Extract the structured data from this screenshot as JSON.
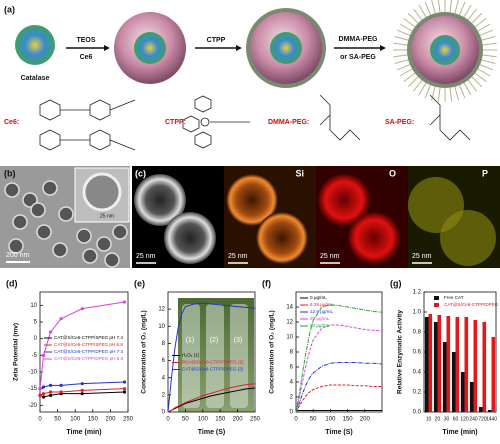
{
  "panels": {
    "a": {
      "label": "(a)",
      "catalase": "Catalase",
      "step1_top": "TEOS",
      "step1_bottom": "Ce6",
      "step2": "CTPP",
      "step3_top": "DMMA-PEG",
      "step3_bottom": "or SA-PEG",
      "structures": [
        "Ce6:",
        "CTPP:",
        "DMMA-PEG:",
        "SA-PEG:"
      ]
    },
    "b": {
      "label": "(b)",
      "inset_scale": "25 nm",
      "scale": "200 nm"
    },
    "c": {
      "label": "(c)",
      "maps": [
        {
          "name": "",
          "scale": "25 nm"
        },
        {
          "name": "Si",
          "scale": "25 nm"
        },
        {
          "name": "O",
          "scale": "25 nm"
        },
        {
          "name": "P",
          "scale": "25 nm"
        }
      ]
    }
  },
  "chart_data": [
    {
      "type": "line",
      "panel": "(d)",
      "x_label": "Time (min)",
      "y_label": "Zeta Potential (mv)",
      "x": [
        0,
        10,
        30,
        60,
        120,
        240
      ],
      "xlim": [
        0,
        250
      ],
      "xticks": [
        0,
        50,
        100,
        150,
        200,
        250
      ],
      "ylim": [
        -22,
        14
      ],
      "yticks": [
        -20,
        -15,
        -10,
        -5,
        0,
        5,
        10
      ],
      "markers": true,
      "legend": "center left",
      "series": [
        {
          "name": "CAT@S/Ce6-CTPP/SPEG pH 7.4",
          "color": "#000000",
          "values": [
            -17,
            -17.5,
            -17,
            -16.5,
            -16.5,
            -16
          ]
        },
        {
          "name": "CAT@S/Ce6-CTPP/SPEG pH 6.8",
          "color": "#e0202a",
          "values": [
            -17,
            -16.5,
            -16,
            -16,
            -15.5,
            -15
          ]
        },
        {
          "name": "CAT@S/Ce6-CTPP/DPEG pH 7.4",
          "color": "#2433c8",
          "values": [
            -15,
            -14.5,
            -14,
            -14,
            -13.5,
            -13
          ]
        },
        {
          "name": "CAT@S/Ce6-CTPP/DPEG pH 6.8",
          "color": "#e040e0",
          "values": [
            -15,
            -5,
            2,
            6,
            9,
            11
          ]
        }
      ]
    },
    {
      "type": "line",
      "panel": "(e)",
      "x_label": "Time (S)",
      "y_label": "Concentration of O₂ (mg/L)",
      "x": [
        0,
        10,
        20,
        30,
        40,
        50,
        75,
        100,
        125,
        150,
        175,
        200,
        225,
        250
      ],
      "xlim": [
        0,
        250
      ],
      "xticks": [
        0,
        50,
        100,
        150,
        200,
        250
      ],
      "ylim": [
        0,
        14
      ],
      "yticks": [
        0,
        2,
        4,
        6,
        8,
        10,
        12
      ],
      "legend": "center left",
      "annotations": [
        "(1)",
        "(2)",
        "(3)"
      ],
      "series": [
        {
          "name": "H₂O₂ (1)",
          "color": "#000000",
          "values": [
            0,
            0.2,
            0.4,
            0.6,
            0.8,
            1,
            1.3,
            1.6,
            1.9,
            2.1,
            2.3,
            2.5,
            2.7,
            2.8
          ]
        },
        {
          "name": "BSA@S/Ce6-CTPP/DPEG (2)",
          "color": "#e0202a",
          "values": [
            0,
            0.2,
            0.5,
            0.7,
            0.9,
            1.1,
            1.5,
            1.9,
            2.2,
            2.5,
            2.8,
            3,
            3.2,
            3.3
          ]
        },
        {
          "name": "CAT@S/Ce6-CTPP/DPEG (3)",
          "color": "#2433c8",
          "values": [
            0,
            4,
            7.5,
            10,
            11.5,
            12.3,
            12.6,
            12.7,
            12.6,
            12.5,
            12.4,
            12.3,
            12.2,
            12.1
          ]
        }
      ]
    },
    {
      "type": "line",
      "panel": "(f)",
      "x_label": "Time (S)",
      "y_label": "Concentration of O₂ (mg/L)",
      "x": [
        0,
        10,
        20,
        30,
        40,
        50,
        75,
        100,
        125,
        150,
        175,
        200,
        225,
        250
      ],
      "xlim": [
        0,
        250
      ],
      "xticks": [
        0,
        50,
        100,
        150,
        200
      ],
      "ylim": [
        0,
        16
      ],
      "yticks": [
        0,
        2,
        4,
        6,
        8,
        10,
        12,
        14
      ],
      "dashed": true,
      "legend": "upper left",
      "series": [
        {
          "name": "0 μg/mL",
          "color": "#000000",
          "values": [
            0.2,
            0.2,
            0.2,
            0.2,
            0.2,
            0.2,
            0.2,
            0.2,
            0.2,
            0.2,
            0.2,
            0.2,
            0.2,
            0.2
          ]
        },
        {
          "name": "6.25 μg/mL",
          "color": "#e0202a",
          "values": [
            0,
            0.8,
            1.6,
            2.2,
            2.7,
            3,
            3.4,
            3.6,
            3.6,
            3.6,
            3.5,
            3.5,
            3.4,
            3.4
          ]
        },
        {
          "name": "12.5 μg/mL",
          "color": "#2433c8",
          "values": [
            0,
            1.2,
            2.6,
            3.7,
            4.6,
            5.2,
            6.1,
            6.5,
            6.6,
            6.6,
            6.6,
            6.5,
            6.5,
            6.4
          ]
        },
        {
          "name": "25 μg/mL",
          "color": "#e040e0",
          "values": [
            0,
            2,
            4.3,
            6.4,
            8.2,
            9.6,
            11.2,
            11.6,
            11.6,
            11.4,
            11.2,
            11,
            10.9,
            10.8
          ]
        },
        {
          "name": "50 μg/mL",
          "color": "#1aa531",
          "values": [
            0,
            2.5,
            5.5,
            8.2,
            10.5,
            12.2,
            14,
            14.3,
            14.2,
            14,
            13.8,
            13.6,
            13.4,
            13.3
          ]
        }
      ]
    },
    {
      "type": "bar",
      "panel": "(g)",
      "x_label": "Time (min)",
      "y_label": "Relative Enzymatic Activity",
      "categories": [
        "10",
        "20",
        "30",
        "60",
        "120",
        "240",
        "720",
        "1440"
      ],
      "ylim": [
        0,
        1.2
      ],
      "yticks": [
        {
          "value": 0,
          "label": "0.0"
        },
        0.2,
        0.4,
        0.6,
        0.8,
        {
          "value": 1,
          "label": "1.0"
        },
        1.2
      ],
      "legend": "upper right",
      "series": [
        {
          "name": "Free CAT",
          "color": "#111111",
          "values": [
            0.95,
            0.9,
            0.7,
            0.6,
            0.4,
            0.3,
            0.05,
            0.02
          ]
        },
        {
          "name": "CAT@S/Ce6-CTPP/DPEG",
          "color": "#e01a1a",
          "values": [
            0.98,
            0.97,
            0.96,
            0.95,
            0.95,
            0.92,
            0.9,
            0.75
          ]
        }
      ]
    }
  ]
}
